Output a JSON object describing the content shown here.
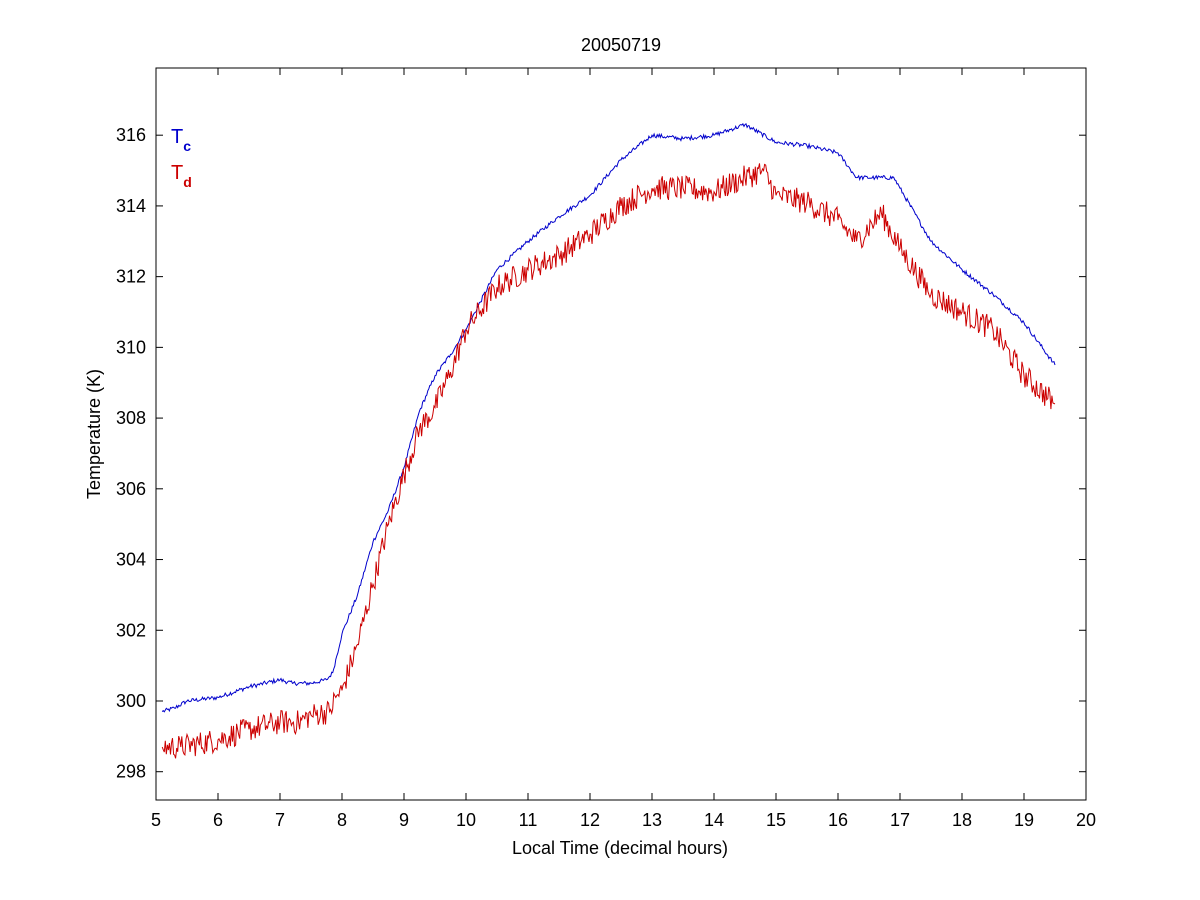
{
  "chart_data": {
    "type": "line",
    "title": "20050719",
    "xlabel": "Local Time (decimal hours)",
    "ylabel": "Temperature (K)",
    "xlim": [
      5,
      20
    ],
    "ylim": [
      297.2,
      317.9
    ],
    "xticks": [
      5,
      6,
      7,
      8,
      9,
      10,
      11,
      12,
      13,
      14,
      15,
      16,
      17,
      18,
      19,
      20
    ],
    "yticks": [
      298,
      300,
      302,
      304,
      306,
      308,
      310,
      312,
      314,
      316
    ],
    "grid": false,
    "legend_position": "top-left",
    "series": [
      {
        "name": "T",
        "subscript": "c",
        "color": "#0000cc",
        "noise": 0.06,
        "x": [
          5.1,
          5.3,
          5.5,
          6.0,
          6.5,
          7.0,
          7.2,
          7.5,
          7.75,
          7.85,
          8.0,
          8.25,
          8.5,
          8.75,
          9.0,
          9.25,
          9.5,
          9.75,
          10.0,
          10.5,
          11.0,
          11.5,
          12.0,
          12.5,
          13.0,
          13.5,
          14.0,
          14.5,
          15.0,
          15.5,
          16.0,
          16.3,
          16.6,
          16.9,
          17.0,
          17.5,
          18.0,
          18.5,
          19.0,
          19.5
        ],
        "y": [
          299.7,
          299.8,
          300.0,
          300.1,
          300.4,
          300.6,
          300.5,
          300.5,
          300.6,
          300.8,
          301.9,
          303.0,
          304.5,
          305.4,
          306.6,
          308.2,
          309.2,
          309.8,
          310.5,
          312.2,
          313.0,
          313.7,
          314.3,
          315.3,
          316.0,
          315.9,
          316.0,
          316.3,
          315.8,
          315.7,
          315.5,
          314.8,
          314.8,
          314.8,
          314.5,
          313.0,
          312.2,
          311.5,
          310.7,
          309.5
        ]
      },
      {
        "name": "T",
        "subscript": "d",
        "color": "#cc0000",
        "noise": 0.35,
        "x": [
          5.1,
          5.4,
          6.0,
          6.5,
          7.0,
          7.3,
          7.5,
          7.8,
          7.9,
          8.0,
          8.25,
          8.5,
          8.75,
          9.0,
          9.25,
          9.5,
          9.75,
          10.0,
          10.5,
          11.0,
          11.5,
          12.0,
          12.5,
          13.0,
          13.5,
          14.0,
          14.5,
          14.8,
          15.0,
          15.5,
          16.0,
          16.3,
          16.7,
          17.0,
          17.5,
          18.0,
          18.5,
          19.0,
          19.5
        ],
        "y": [
          298.7,
          298.7,
          298.9,
          299.2,
          299.4,
          299.4,
          299.6,
          299.7,
          300.1,
          300.3,
          301.6,
          303.3,
          305.0,
          306.4,
          307.7,
          308.3,
          309.3,
          310.5,
          311.7,
          312.2,
          312.6,
          313.2,
          314.0,
          314.5,
          314.5,
          314.4,
          314.8,
          315.0,
          314.3,
          314.1,
          313.6,
          313.0,
          313.8,
          312.8,
          311.5,
          311.0,
          310.5,
          309.2,
          308.4
        ]
      }
    ]
  }
}
